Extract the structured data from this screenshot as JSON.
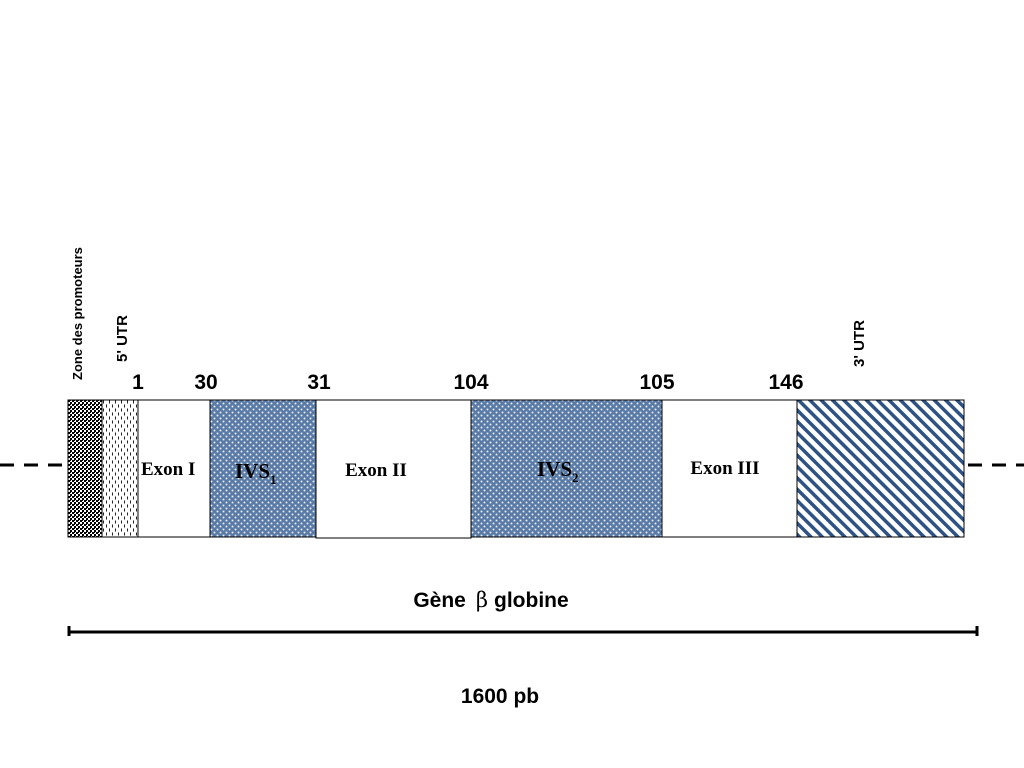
{
  "labels": {
    "promoter_zone": "Zone des promoteurs",
    "utr5": "5' UTR",
    "utr3": "3' UTR",
    "exon1": "Exon I",
    "ivs1_base": "IVS",
    "ivs1_sub": "1",
    "exon2": "Exon II",
    "ivs2_base": "IVS",
    "ivs2_sub": "2",
    "exon3": "Exon III"
  },
  "codon_numbers": [
    "1",
    "30",
    "31",
    "104",
    "105",
    "146"
  ],
  "gene_title": {
    "prefix": "Gène",
    "symbol": "β",
    "suffix": "globine"
  },
  "length_label": "1600 pb",
  "colors": {
    "intron_fill": "#5a7aa6",
    "utr3_stripe": "#2e5283",
    "outline": "#000000",
    "background": "#ffffff"
  }
}
